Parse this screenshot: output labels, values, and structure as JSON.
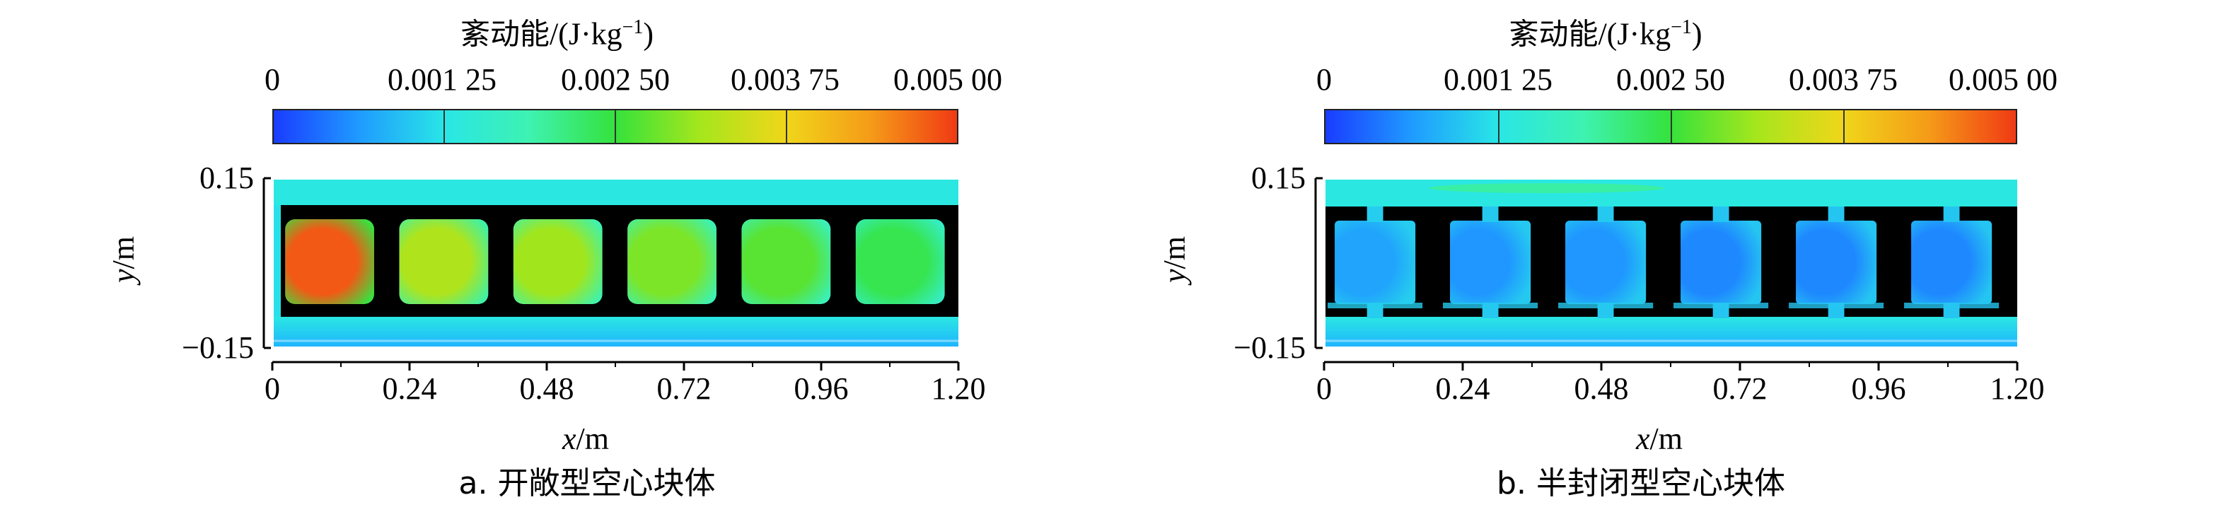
{
  "colorbar": {
    "title_cjk": "紊动能",
    "title_unit": "/(J·kg",
    "title_exp": "−1",
    "title_close": ")",
    "ticks": [
      "0",
      "0.001 25",
      "0.002 50",
      "0.003 75",
      "0.005 00"
    ],
    "min": 0,
    "max": 0.005,
    "colors": [
      "#1a3cff",
      "#1f9bff",
      "#29e6e6",
      "#3ef2b0",
      "#35e23c",
      "#a6e61c",
      "#f0d61a",
      "#f59a18",
      "#f03a14"
    ]
  },
  "chart_data": [
    {
      "type": "heatmap",
      "caption": "a. 开敞型空心块体",
      "xlabel_var": "x",
      "xlabel_unit": "/m",
      "ylabel_var": "y",
      "ylabel_unit": "/m",
      "xticks": [
        "0",
        "0.24",
        "0.48",
        "0.72",
        "0.96",
        "1.20"
      ],
      "yticks": [
        "0.15",
        "−0.15"
      ],
      "xlim": [
        0,
        1.2
      ],
      "ylim": [
        -0.15,
        0.15
      ],
      "block_tke": [
        0.0048,
        0.0032,
        0.0031,
        0.0029,
        0.0027,
        0.0024
      ],
      "channel_tke": 0.0013
    },
    {
      "type": "heatmap",
      "caption": "b. 半封闭型空心块体",
      "xlabel_var": "x",
      "xlabel_unit": "/m",
      "ylabel_var": "y",
      "ylabel_unit": "/m",
      "xticks": [
        "0",
        "0.24",
        "0.48",
        "0.72",
        "0.96",
        "1.20"
      ],
      "yticks": [
        "0.15",
        "−0.15"
      ],
      "xlim": [
        0,
        1.2
      ],
      "ylim": [
        -0.15,
        0.15
      ],
      "block_tke": [
        0.0007,
        0.0006,
        0.0006,
        0.0005,
        0.0005,
        0.0005
      ],
      "channel_tke": 0.0013
    }
  ]
}
